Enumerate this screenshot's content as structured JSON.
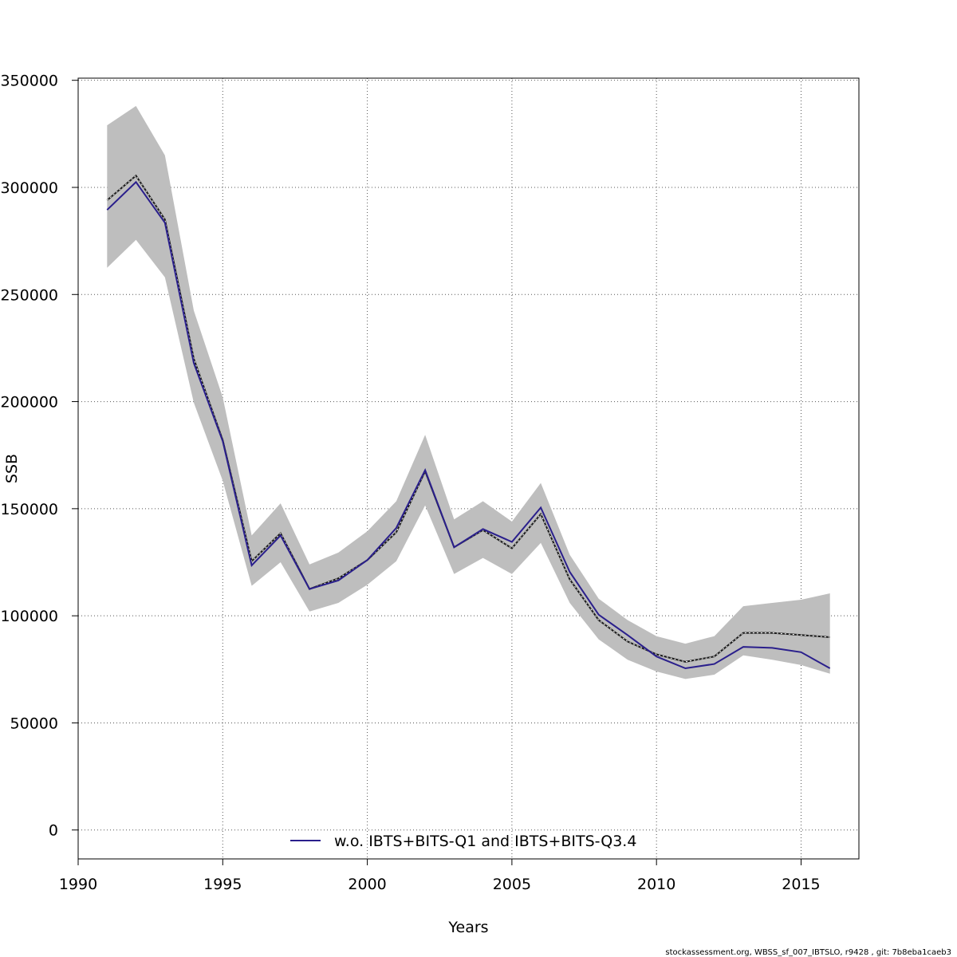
{
  "chart_data": {
    "type": "line",
    "xlabel": "Years",
    "ylabel": "SSB",
    "xlim": [
      1990,
      2017
    ],
    "ylim": [
      -13500,
      351000
    ],
    "x_ticks": [
      1990,
      1995,
      2000,
      2005,
      2010,
      2015
    ],
    "y_ticks": [
      0,
      50000,
      100000,
      150000,
      200000,
      250000,
      300000,
      350000
    ],
    "grid": true,
    "legend": {
      "position": "bottom-center",
      "entries": [
        "w.o. IBTS+BITS-Q1 and IBTS+BITS-Q3.4"
      ]
    },
    "colors": {
      "band": "#bebebe",
      "base_line": "#1a1a1a",
      "series_line": "#2a1f8c"
    },
    "x": [
      1991,
      1992,
      1993,
      1994,
      1995,
      1996,
      1997,
      1998,
      1999,
      2000,
      2001,
      2002,
      2003,
      2004,
      2005,
      2006,
      2007,
      2008,
      2009,
      2010,
      2011,
      2012,
      2013,
      2014,
      2015,
      2016
    ],
    "band": {
      "lower": [
        262500,
        275500,
        258000,
        199500,
        163000,
        114000,
        125000,
        102000,
        106000,
        114500,
        125500,
        151500,
        119500,
        127000,
        119500,
        134000,
        106000,
        89000,
        79500,
        74000,
        70500,
        72500,
        81500,
        79500,
        77000,
        73000
      ],
      "upper": [
        329000,
        338000,
        315000,
        242500,
        202000,
        137500,
        152500,
        124000,
        129500,
        139500,
        153500,
        184500,
        145000,
        153500,
        144000,
        162000,
        128500,
        108000,
        98000,
        90500,
        87000,
        90500,
        104500,
        106000,
        107500,
        110500
      ]
    },
    "series": [
      {
        "style": "dashed",
        "values": [
          294000,
          305500,
          285000,
          220000,
          182000,
          125500,
          138500,
          112500,
          117500,
          126000,
          139000,
          167500,
          132000,
          140000,
          131500,
          147500,
          117000,
          98000,
          88000,
          82000,
          78500,
          81000,
          92000,
          92000,
          91000,
          90000
        ]
      },
      {
        "name": "w.o. IBTS+BITS-Q1 and IBTS+BITS-Q3.4",
        "style": "solid",
        "values": [
          289500,
          302500,
          283500,
          218000,
          181500,
          123500,
          137500,
          112500,
          116500,
          126000,
          141000,
          168000,
          132000,
          140500,
          134500,
          150500,
          120500,
          100500,
          91000,
          81000,
          75500,
          77500,
          85500,
          85000,
          83000,
          75500
        ]
      }
    ]
  },
  "footer": "stockassessment.org, WBSS_sf_007_IBTSLO, r9428 , git: 7b8eba1caeb3"
}
